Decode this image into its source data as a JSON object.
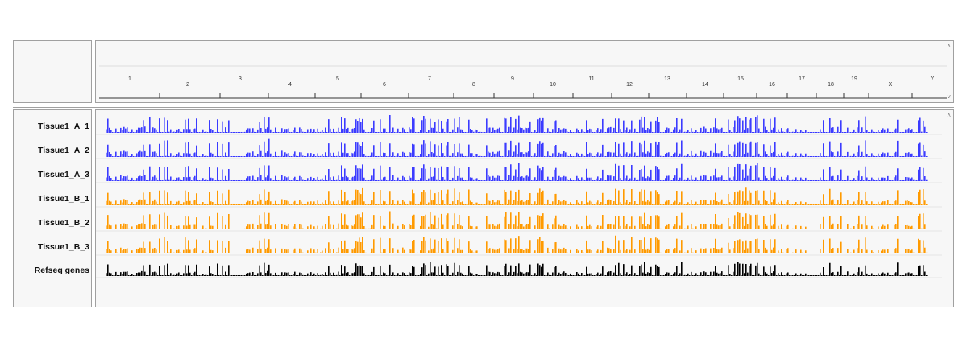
{
  "chromosome_ruler": {
    "labels": [
      "1",
      "2",
      "3",
      "4",
      "5",
      "6",
      "7",
      "8",
      "9",
      "10",
      "11",
      "12",
      "13",
      "14",
      "15",
      "16",
      "17",
      "18",
      "19",
      "X",
      "Y"
    ]
  },
  "tracks": [
    {
      "label": "Tissue1_A_1",
      "color": "#3b3bff"
    },
    {
      "label": "Tissue1_A_2",
      "color": "#3b3bff"
    },
    {
      "label": "Tissue1_A_3",
      "color": "#3b3bff"
    },
    {
      "label": "Tissue1_B_1",
      "color": "#ff9a00"
    },
    {
      "label": "Tissue1_B_2",
      "color": "#ff9a00"
    },
    {
      "label": "Tissue1_B_3",
      "color": "#ff9a00"
    },
    {
      "label": "Refseq genes",
      "color": "#000000"
    }
  ],
  "icons": {
    "scroll_up": "chevron-up-icon",
    "scroll_down": "chevron-down-icon"
  }
}
